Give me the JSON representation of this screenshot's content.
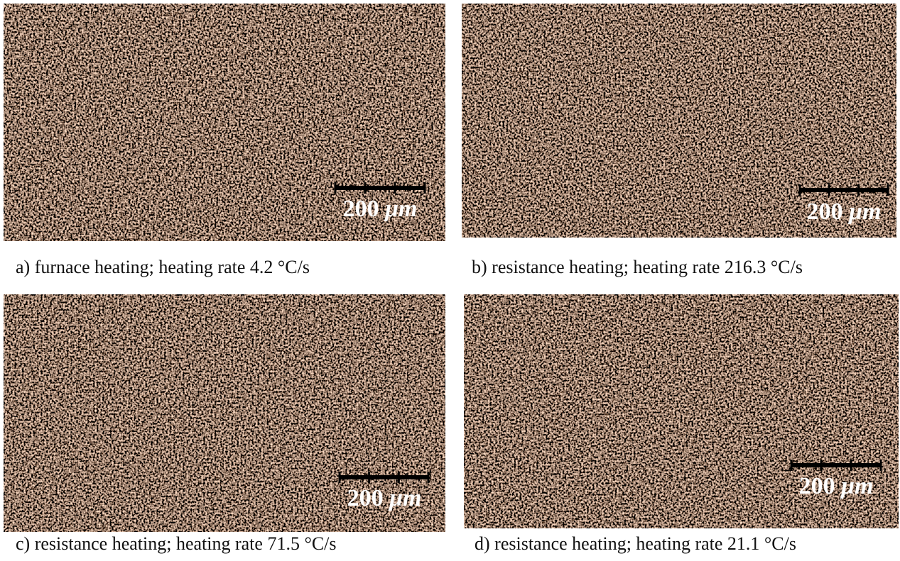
{
  "panels": [
    {
      "caption": "a) furnace heating; heating rate 4.2 °C/s",
      "scale_value": "200",
      "scale_unit": "μm"
    },
    {
      "caption": "b) resistance heating; heating rate 216.3 °C/s",
      "scale_value": "200",
      "scale_unit": "μm"
    },
    {
      "caption": "c) resistance heating; heating rate 71.5 °C/s",
      "scale_value": "200",
      "scale_unit": "μm"
    },
    {
      "caption": "d) resistance heating; heating rate 21.1 °C/s",
      "scale_value": "200",
      "scale_unit": "μm"
    }
  ]
}
